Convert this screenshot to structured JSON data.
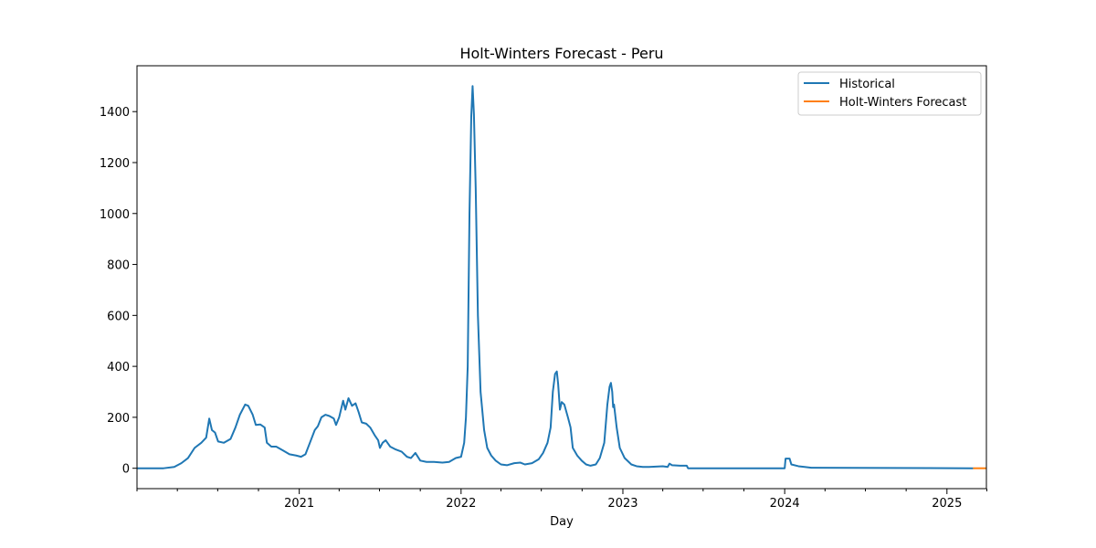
{
  "chart_data": {
    "type": "line",
    "title": "Holt-Winters Forecast - Peru",
    "xlabel": "Day",
    "ylabel": "",
    "xlim": [
      "2020-01-01",
      "2025-03-31"
    ],
    "ylim": [
      -80,
      1580
    ],
    "yticks": [
      0,
      200,
      400,
      600,
      800,
      1000,
      1200,
      1400
    ],
    "xticks": [
      {
        "date": "2021-01-01",
        "label": "2021"
      },
      {
        "date": "2022-01-01",
        "label": "2022"
      },
      {
        "date": "2023-01-01",
        "label": "2023"
      },
      {
        "date": "2024-01-01",
        "label": "2024"
      },
      {
        "date": "2025-01-01",
        "label": "2025"
      }
    ],
    "minor_xticks": [
      "2020-01-01",
      "2020-04-01",
      "2020-07-01",
      "2020-10-01",
      "2021-04-01",
      "2021-07-01",
      "2021-10-01",
      "2022-04-01",
      "2022-07-01",
      "2022-10-01",
      "2023-04-01",
      "2023-07-01",
      "2023-10-01",
      "2024-04-01",
      "2024-07-01",
      "2024-10-01",
      "2025-04-01"
    ],
    "legend": {
      "placement": "top-right"
    },
    "grid": false,
    "series": [
      {
        "name": "Historical",
        "color": "#1f77b4",
        "points": [
          [
            "2020-01-01",
            0
          ],
          [
            "2020-03-01",
            0
          ],
          [
            "2020-03-25",
            5
          ],
          [
            "2020-04-10",
            20
          ],
          [
            "2020-04-25",
            40
          ],
          [
            "2020-05-10",
            80
          ],
          [
            "2020-05-25",
            100
          ],
          [
            "2020-06-05",
            120
          ],
          [
            "2020-06-12",
            195
          ],
          [
            "2020-06-18",
            150
          ],
          [
            "2020-06-25",
            140
          ],
          [
            "2020-07-02",
            105
          ],
          [
            "2020-07-15",
            100
          ],
          [
            "2020-07-30",
            115
          ],
          [
            "2020-08-10",
            160
          ],
          [
            "2020-08-20",
            210
          ],
          [
            "2020-09-01",
            250
          ],
          [
            "2020-09-08",
            245
          ],
          [
            "2020-09-18",
            210
          ],
          [
            "2020-09-25",
            170
          ],
          [
            "2020-10-05",
            172
          ],
          [
            "2020-10-15",
            160
          ],
          [
            "2020-10-20",
            100
          ],
          [
            "2020-10-30",
            85
          ],
          [
            "2020-11-10",
            85
          ],
          [
            "2020-11-25",
            70
          ],
          [
            "2020-12-10",
            55
          ],
          [
            "2020-12-25",
            50
          ],
          [
            "2021-01-05",
            45
          ],
          [
            "2021-01-15",
            55
          ],
          [
            "2021-01-25",
            100
          ],
          [
            "2021-02-05",
            150
          ],
          [
            "2021-02-12",
            165
          ],
          [
            "2021-02-20",
            200
          ],
          [
            "2021-03-01",
            210
          ],
          [
            "2021-03-10",
            205
          ],
          [
            "2021-03-20",
            195
          ],
          [
            "2021-03-25",
            170
          ],
          [
            "2021-04-01",
            200
          ],
          [
            "2021-04-10",
            265
          ],
          [
            "2021-04-15",
            230
          ],
          [
            "2021-04-22",
            275
          ],
          [
            "2021-04-30",
            245
          ],
          [
            "2021-05-08",
            255
          ],
          [
            "2021-05-15",
            220
          ],
          [
            "2021-05-22",
            180
          ],
          [
            "2021-06-01",
            175
          ],
          [
            "2021-06-10",
            160
          ],
          [
            "2021-06-20",
            130
          ],
          [
            "2021-06-28",
            110
          ],
          [
            "2021-07-02",
            80
          ],
          [
            "2021-07-08",
            100
          ],
          [
            "2021-07-15",
            110
          ],
          [
            "2021-07-25",
            85
          ],
          [
            "2021-08-05",
            75
          ],
          [
            "2021-08-20",
            65
          ],
          [
            "2021-09-01",
            45
          ],
          [
            "2021-09-10",
            40
          ],
          [
            "2021-09-20",
            60
          ],
          [
            "2021-10-01",
            30
          ],
          [
            "2021-10-15",
            25
          ],
          [
            "2021-11-01",
            25
          ],
          [
            "2021-11-20",
            22
          ],
          [
            "2021-12-05",
            25
          ],
          [
            "2021-12-20",
            40
          ],
          [
            "2022-01-01",
            45
          ],
          [
            "2022-01-08",
            100
          ],
          [
            "2022-01-12",
            200
          ],
          [
            "2022-01-16",
            400
          ],
          [
            "2022-01-20",
            1000
          ],
          [
            "2022-01-24",
            1380
          ],
          [
            "2022-01-27",
            1500
          ],
          [
            "2022-01-30",
            1390
          ],
          [
            "2022-02-03",
            1100
          ],
          [
            "2022-02-08",
            600
          ],
          [
            "2022-02-14",
            300
          ],
          [
            "2022-02-22",
            150
          ],
          [
            "2022-03-01",
            80
          ],
          [
            "2022-03-10",
            50
          ],
          [
            "2022-03-20",
            30
          ],
          [
            "2022-04-01",
            15
          ],
          [
            "2022-04-15",
            12
          ],
          [
            "2022-05-01",
            20
          ],
          [
            "2022-05-15",
            22
          ],
          [
            "2022-05-25",
            15
          ],
          [
            "2022-06-10",
            20
          ],
          [
            "2022-06-25",
            35
          ],
          [
            "2022-07-05",
            60
          ],
          [
            "2022-07-15",
            100
          ],
          [
            "2022-07-22",
            160
          ],
          [
            "2022-07-27",
            300
          ],
          [
            "2022-08-01",
            370
          ],
          [
            "2022-08-05",
            380
          ],
          [
            "2022-08-08",
            330
          ],
          [
            "2022-08-12",
            230
          ],
          [
            "2022-08-16",
            260
          ],
          [
            "2022-08-22",
            250
          ],
          [
            "2022-08-30",
            200
          ],
          [
            "2022-09-05",
            160
          ],
          [
            "2022-09-10",
            80
          ],
          [
            "2022-09-20",
            50
          ],
          [
            "2022-09-30",
            30
          ],
          [
            "2022-10-10",
            15
          ],
          [
            "2022-10-20",
            10
          ],
          [
            "2022-11-01",
            15
          ],
          [
            "2022-11-10",
            40
          ],
          [
            "2022-11-20",
            100
          ],
          [
            "2022-11-27",
            250
          ],
          [
            "2022-12-02",
            320
          ],
          [
            "2022-12-05",
            335
          ],
          [
            "2022-12-08",
            300
          ],
          [
            "2022-12-10",
            240
          ],
          [
            "2022-12-12",
            250
          ],
          [
            "2022-12-18",
            160
          ],
          [
            "2022-12-25",
            80
          ],
          [
            "2023-01-05",
            40
          ],
          [
            "2023-01-20",
            15
          ],
          [
            "2023-02-01",
            8
          ],
          [
            "2023-02-15",
            5
          ],
          [
            "2023-03-01",
            5
          ],
          [
            "2023-04-01",
            8
          ],
          [
            "2023-04-12",
            5
          ],
          [
            "2023-04-16",
            18
          ],
          [
            "2023-04-22",
            12
          ],
          [
            "2023-05-10",
            10
          ],
          [
            "2023-05-25",
            10
          ],
          [
            "2023-05-28",
            0
          ],
          [
            "2024-01-01",
            0
          ],
          [
            "2024-01-03",
            38
          ],
          [
            "2024-01-12",
            38
          ],
          [
            "2024-01-16",
            15
          ],
          [
            "2024-02-01",
            8
          ],
          [
            "2024-02-15",
            5
          ],
          [
            "2024-03-01",
            2
          ],
          [
            "2025-03-01",
            0
          ]
        ]
      },
      {
        "name": "Holt-Winters Forecast",
        "color": "#ff7f0e",
        "points": [
          [
            "2025-03-01",
            0
          ],
          [
            "2025-03-31",
            0
          ]
        ]
      }
    ]
  }
}
